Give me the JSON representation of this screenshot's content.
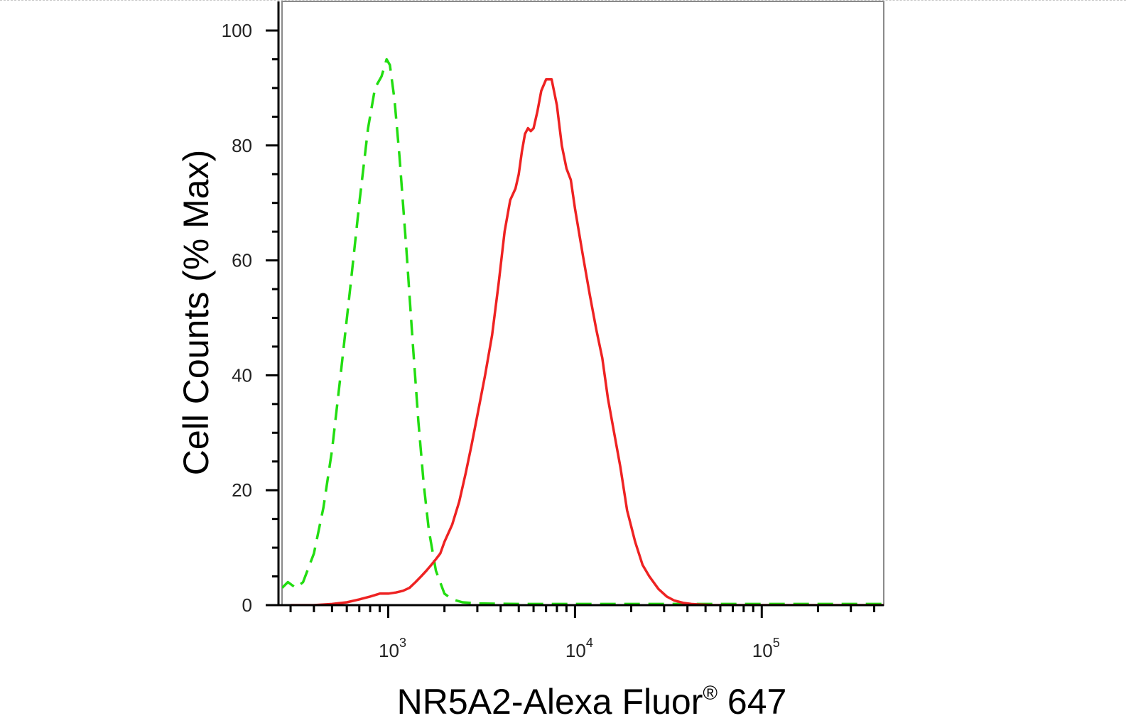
{
  "chart_data": {
    "type": "line",
    "title": "",
    "xlabel": "NR5A2-Alexa Fluor® 647",
    "xlabel_main": "NR5A2-Alexa Fluor",
    "xlabel_mark": "®",
    "xlabel_tail": " 647",
    "ylabel": "Cell Counts (% Max)",
    "x_scale": "log",
    "xlim": [
      270,
      450000
    ],
    "ylim": [
      0,
      100
    ],
    "grid": false,
    "legend": "none",
    "y_ticks": [
      {
        "value": 0,
        "label": "0"
      },
      {
        "value": 20,
        "label": "20"
      },
      {
        "value": 40,
        "label": "40"
      },
      {
        "value": 60,
        "label": "60"
      },
      {
        "value": 80,
        "label": "80"
      },
      {
        "value": 100,
        "label": "100"
      }
    ],
    "x_ticks": [
      {
        "value": 1000,
        "base": "10",
        "exp": "3"
      },
      {
        "value": 10000,
        "base": "10",
        "exp": "4"
      },
      {
        "value": 100000,
        "base": "10",
        "exp": "5"
      }
    ],
    "series": [
      {
        "color": "#22dd11",
        "style": "dashed",
        "x": [
          270,
          290,
          320,
          350,
          400,
          450,
          500,
          560,
          630,
          700,
          780,
          850,
          920,
          980,
          1020,
          1080,
          1150,
          1250,
          1350,
          1450,
          1550,
          1650,
          1800,
          2000,
          2200,
          2500,
          3000,
          5000,
          10000,
          50000,
          450000
        ],
        "y": [
          3,
          4,
          3,
          4,
          9,
          17,
          27,
          41,
          56,
          70,
          83,
          90,
          92,
          95,
          94,
          88,
          78,
          62,
          46,
          32,
          21,
          13,
          6,
          2,
          1,
          0.5,
          0.3,
          0.2,
          0.2,
          0.2,
          0.2
        ]
      },
      {
        "color": "#ee2222",
        "style": "solid",
        "x": [
          300,
          400,
          500,
          600,
          700,
          800,
          900,
          1000,
          1100,
          1200,
          1300,
          1400,
          1500,
          1600,
          1700,
          1800,
          1900,
          2000,
          2200,
          2400,
          2600,
          2800,
          3000,
          3300,
          3600,
          3900,
          4200,
          4500,
          4800,
          5000,
          5200,
          5400,
          5600,
          5800,
          6000,
          6300,
          6600,
          7000,
          7500,
          8000,
          8500,
          9000,
          9500,
          10000,
          11000,
          12000,
          13000,
          14000,
          15000,
          16000,
          17500,
          19000,
          21000,
          23000,
          25000,
          28000,
          31000,
          34000,
          38000,
          42000,
          47000,
          55000,
          70000,
          100000,
          200000,
          450000
        ],
        "y": [
          0,
          0,
          0.2,
          0.5,
          1.0,
          1.5,
          2.0,
          2.0,
          2.2,
          2.5,
          3.0,
          4.0,
          5.0,
          6.0,
          7.0,
          8.0,
          9.0,
          11.0,
          14.0,
          18.0,
          23.0,
          28.0,
          33.0,
          40.0,
          47.0,
          56.0,
          65.0,
          70.5,
          72.5,
          75.0,
          79.0,
          82.0,
          83.0,
          82.5,
          83.0,
          86.0,
          89.5,
          91.5,
          91.5,
          87.0,
          80.0,
          76.0,
          74.0,
          69.0,
          61.0,
          54.0,
          48.0,
          43.0,
          36.0,
          31.0,
          24.0,
          16.5,
          11.0,
          7.0,
          5.0,
          2.8,
          1.5,
          0.8,
          0.4,
          0.2,
          0.1,
          0.0,
          0.0,
          0.0,
          0.0,
          0.0
        ]
      }
    ]
  }
}
